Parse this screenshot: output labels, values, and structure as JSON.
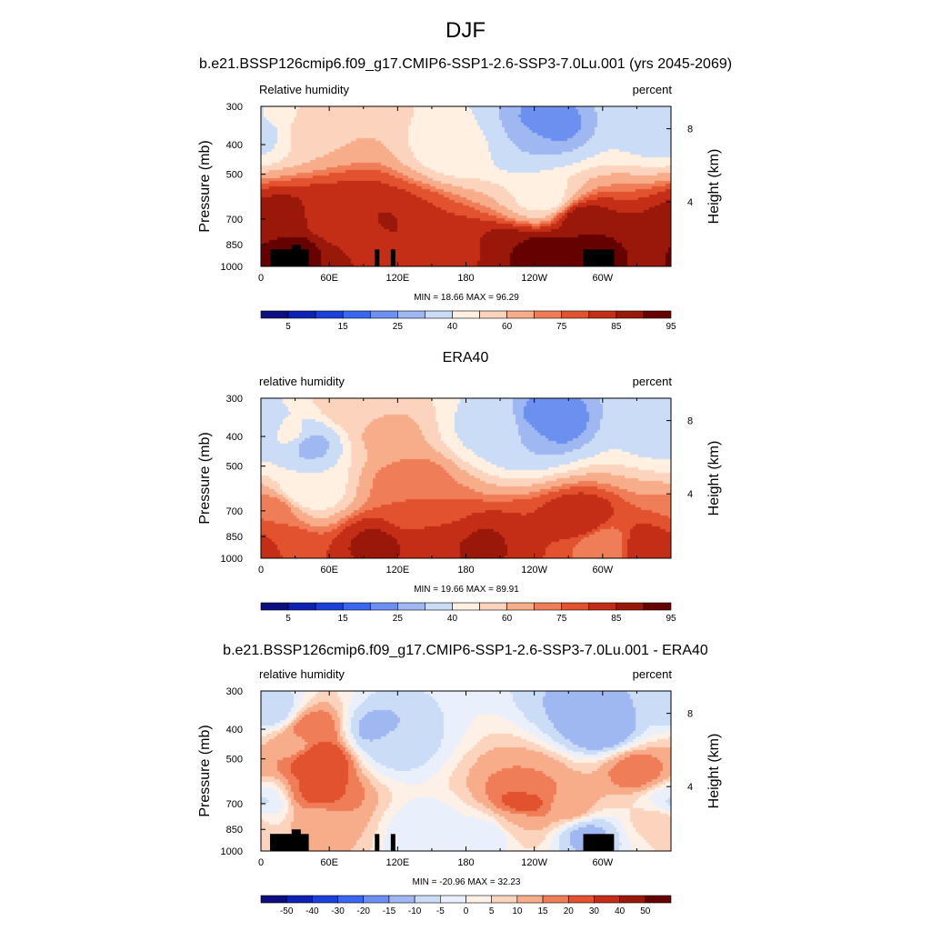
{
  "title": "DJF",
  "colors": {
    "rh_fills": [
      "#0d0d82",
      "#0d22b3",
      "#1b3fd9",
      "#3a67f0",
      "#6c90f0",
      "#9fb8f2",
      "#cbdcf7",
      "#fff0e1",
      "#fcd4bd",
      "#f7ac8a",
      "#ef7d58",
      "#e2522e",
      "#c42e16",
      "#9a1809",
      "#650101"
    ],
    "diff_fills": [
      "#0d0d82",
      "#0d22b3",
      "#1b3fd9",
      "#3a67f0",
      "#6c90f0",
      "#9fb8f2",
      "#cbdcf7",
      "#e9f0fb",
      "#fdf0e6",
      "#fcd4bd",
      "#f7ac8a",
      "#ef7d58",
      "#e2522e",
      "#c42e16",
      "#9a1809",
      "#650101"
    ]
  },
  "panels": [
    {
      "title": "b.e21.BSSP126cmip6.f09_g17.CMIP6-SSP1-2.6-SSP3-7.0Lu.001 (yrs 2045-2069)",
      "left_label": "Relative humidity",
      "right_label": "percent",
      "minmax": "MIN =  18.66  MAX =  96.29",
      "colorbar_labels": [
        "5",
        "15",
        "25",
        "40",
        "60",
        "75",
        "85",
        "95"
      ]
    },
    {
      "title": "ERA40",
      "left_label": "relative humidity",
      "right_label": "percent",
      "minmax": "MIN =  19.66  MAX =  89.91",
      "colorbar_labels": [
        "5",
        "15",
        "25",
        "40",
        "60",
        "75",
        "85",
        "95"
      ]
    },
    {
      "title": "b.e21.BSSP126cmip6.f09_g17.CMIP6-SSP1-2.6-SSP3-7.0Lu.001 - ERA40",
      "left_label": "relative humidity",
      "right_label": "percent",
      "minmax": "MIN = -20.96  MAX =  32.23",
      "colorbar_labels": [
        "-50",
        "-40",
        "-30",
        "-20",
        "-15",
        "-10",
        "-5",
        "0",
        "5",
        "10",
        "15",
        "20",
        "30",
        "40",
        "50"
      ]
    }
  ],
  "chart_data": [
    {
      "type": "heatmap",
      "title": "b.e21.BSSP126cmip6.f09_g17.CMIP6-SSP1-2.6-SSP3-7.0Lu.001 (yrs 2045-2069)",
      "variable": "Relative humidity",
      "units": "percent",
      "xlabel": "",
      "ylabel": "Pressure (mb)",
      "y2label": "Height (km)",
      "xlim": [
        0,
        360
      ],
      "ylim": [
        1000,
        300
      ],
      "y_scale": "log",
      "x_ticks": [
        "0",
        "60E",
        "120E",
        "180",
        "120W",
        "60W"
      ],
      "y_ticks": [
        "300",
        "400",
        "500",
        "700",
        "850",
        "1000"
      ],
      "y2_ticks": [
        "8",
        "4"
      ],
      "levels": [
        5,
        10,
        15,
        20,
        25,
        30,
        40,
        50,
        60,
        70,
        75,
        80,
        85,
        90,
        95
      ],
      "min": 18.66,
      "max": 96.29,
      "features": [
        {
          "lon": 22,
          "p": 705,
          "value": 88
        },
        {
          "lon": 30,
          "p": 880,
          "value": 92
        },
        {
          "lon": 60,
          "p": 700,
          "value": 80
        },
        {
          "lon": 80,
          "p": 700,
          "value": 85
        },
        {
          "lon": 100,
          "p": 780,
          "value": 84
        },
        {
          "lon": 115,
          "p": 720,
          "value": 86
        },
        {
          "lon": 135,
          "p": 700,
          "value": 80
        },
        {
          "lon": 280,
          "p": 700,
          "value": 88
        },
        {
          "lon": 285,
          "p": 880,
          "value": 92
        },
        {
          "lon": 250,
          "p": 920,
          "value": 94
        },
        {
          "lon": 220,
          "p": 910,
          "value": 90
        },
        {
          "lon": 175,
          "p": 900,
          "value": 84
        },
        {
          "lon": 350,
          "p": 920,
          "value": 90
        },
        {
          "lon": 250,
          "p": 350,
          "value": 22
        },
        {
          "lon": 235,
          "p": 400,
          "value": 30
        },
        {
          "lon": 355,
          "p": 350,
          "value": 30
        },
        {
          "lon": 10,
          "p": 330,
          "value": 42
        },
        {
          "lon": 170,
          "p": 420,
          "value": 45
        },
        {
          "lon": 250,
          "p": 600,
          "value": 45
        },
        {
          "lon": 45,
          "p": 350,
          "value": 60
        }
      ]
    },
    {
      "type": "heatmap",
      "title": "ERA40",
      "variable": "relative humidity",
      "units": "percent",
      "xlabel": "",
      "ylabel": "Pressure (mb)",
      "y2label": "Height (km)",
      "xlim": [
        0,
        360
      ],
      "ylim": [
        1000,
        300
      ],
      "y_scale": "log",
      "x_ticks": [
        "0",
        "60E",
        "120E",
        "180",
        "120W",
        "60W"
      ],
      "y_ticks": [
        "300",
        "400",
        "500",
        "700",
        "850",
        "1000"
      ],
      "y2_ticks": [
        "8",
        "4"
      ],
      "levels": [
        5,
        10,
        15,
        20,
        25,
        30,
        40,
        50,
        60,
        70,
        75,
        80,
        85,
        90,
        95
      ],
      "min": 19.66,
      "max": 89.91,
      "features": [
        {
          "lon": 40,
          "p": 420,
          "value": 24
        },
        {
          "lon": 40,
          "p": 600,
          "value": 40
        },
        {
          "lon": 30,
          "p": 400,
          "value": 45
        },
        {
          "lon": 250,
          "p": 360,
          "value": 20
        },
        {
          "lon": 230,
          "p": 400,
          "value": 30
        },
        {
          "lon": 200,
          "p": 380,
          "value": 38
        },
        {
          "lon": 355,
          "p": 380,
          "value": 35
        },
        {
          "lon": 130,
          "p": 560,
          "value": 75
        },
        {
          "lon": 140,
          "p": 700,
          "value": 75
        },
        {
          "lon": 10,
          "p": 700,
          "value": 75
        },
        {
          "lon": 100,
          "p": 900,
          "value": 86
        },
        {
          "lon": 200,
          "p": 910,
          "value": 86
        },
        {
          "lon": 150,
          "p": 900,
          "value": 85
        },
        {
          "lon": 280,
          "p": 750,
          "value": 85
        },
        {
          "lon": 340,
          "p": 910,
          "value": 85
        },
        {
          "lon": 20,
          "p": 920,
          "value": 80
        },
        {
          "lon": 240,
          "p": 860,
          "value": 80
        },
        {
          "lon": 300,
          "p": 900,
          "value": 70
        },
        {
          "lon": 110,
          "p": 400,
          "value": 62
        },
        {
          "lon": 80,
          "p": 320,
          "value": 58
        }
      ]
    },
    {
      "type": "heatmap",
      "title": "b.e21.BSSP126cmip6.f09_g17.CMIP6-SSP1-2.6-SSP3-7.0Lu.001 - ERA40",
      "variable": "relative humidity",
      "units": "percent",
      "xlabel": "",
      "ylabel": "Pressure (mb)",
      "y2label": "Height (km)",
      "xlim": [
        0,
        360
      ],
      "ylim": [
        1000,
        300
      ],
      "y_scale": "log",
      "x_ticks": [
        "0",
        "60E",
        "120E",
        "180",
        "120W",
        "60W"
      ],
      "y_ticks": [
        "300",
        "400",
        "500",
        "700",
        "850",
        "1000"
      ],
      "y2_ticks": [
        "8",
        "4"
      ],
      "levels": [
        -50,
        -40,
        -30,
        -20,
        -15,
        -10,
        -5,
        0,
        5,
        10,
        15,
        20,
        30,
        40,
        50
      ],
      "min": -20.96,
      "max": 32.23,
      "features": [
        {
          "lon": 50,
          "p": 500,
          "value": 30
        },
        {
          "lon": 50,
          "p": 650,
          "value": 22
        },
        {
          "lon": 45,
          "p": 400,
          "value": 20
        },
        {
          "lon": 30,
          "p": 450,
          "value": 12
        },
        {
          "lon": 50,
          "p": 800,
          "value": 12
        },
        {
          "lon": 230,
          "p": 700,
          "value": 25
        },
        {
          "lon": 235,
          "p": 600,
          "value": 15
        },
        {
          "lon": 225,
          "p": 800,
          "value": 10
        },
        {
          "lon": 330,
          "p": 550,
          "value": 18
        },
        {
          "lon": 300,
          "p": 400,
          "value": -15
        },
        {
          "lon": 290,
          "p": 350,
          "value": -12
        },
        {
          "lon": 100,
          "p": 400,
          "value": -12
        },
        {
          "lon": 115,
          "p": 450,
          "value": -8
        },
        {
          "lon": 10,
          "p": 350,
          "value": -10
        },
        {
          "lon": 0,
          "p": 700,
          "value": -6
        },
        {
          "lon": 285,
          "p": 880,
          "value": -12
        },
        {
          "lon": 150,
          "p": 880,
          "value": -5
        },
        {
          "lon": 200,
          "p": 880,
          "value": -4
        },
        {
          "lon": 270,
          "p": 720,
          "value": 14
        },
        {
          "lon": 350,
          "p": 780,
          "value": 8
        }
      ]
    }
  ]
}
